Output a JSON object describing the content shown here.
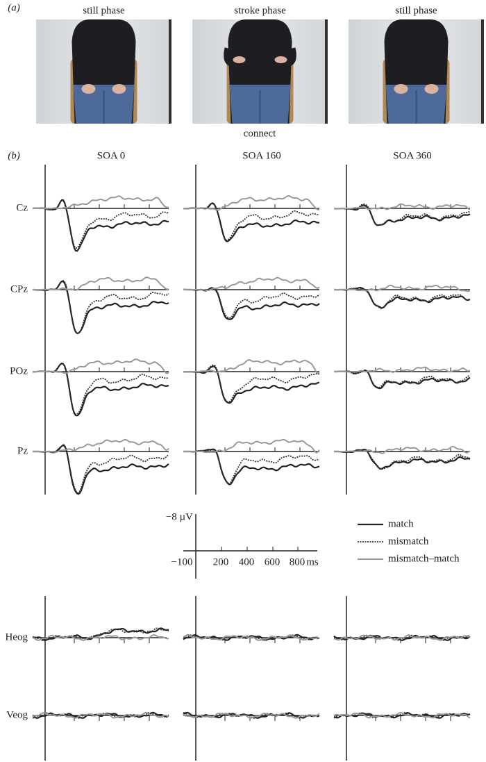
{
  "panel_a": {
    "label": "(a)",
    "frames": [
      "still phase",
      "stroke phase",
      "still phase"
    ],
    "word": "connect"
  },
  "panel_b": {
    "label": "(b)",
    "conditions": [
      "SOA 0",
      "SOA 160",
      "SOA 360"
    ],
    "electrodes": [
      "Cz",
      "CPz",
      "POz",
      "Pz"
    ],
    "eog": [
      "Heog",
      "Veog"
    ],
    "scale": {
      "amplitude": "−8 µV",
      "times": [
        "−100",
        "200",
        "400",
        "600",
        "800"
      ],
      "unit": "ms"
    },
    "legend": [
      "match",
      "mismatch",
      "mismatch–match"
    ]
  }
}
